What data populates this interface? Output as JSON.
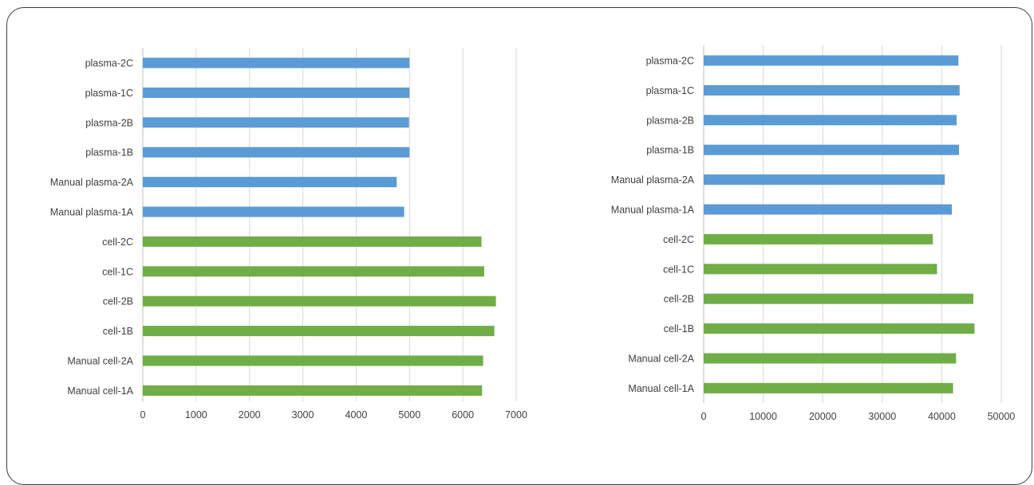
{
  "chart_data": [
    {
      "type": "bar",
      "orientation": "horizontal",
      "title": "",
      "xlabel": "",
      "ylabel": "",
      "xlim": [
        0,
        7000
      ],
      "xticks": [
        0,
        1000,
        2000,
        3000,
        4000,
        5000,
        6000,
        7000
      ],
      "grid": "vertical",
      "categories": [
        "plasma-2C",
        "plasma-1C",
        "plasma-2B",
        "plasma-1B",
        "Manual plasma-2A",
        "Manual plasma-1A",
        "cell-2C",
        "cell-1C",
        "cell-2B",
        "cell-1B",
        "Manual cell-2A",
        "Manual cell-1A"
      ],
      "values": [
        5000,
        5000,
        4990,
        5000,
        4760,
        4900,
        6350,
        6400,
        6620,
        6590,
        6380,
        6360
      ],
      "colors": [
        "#5b9bd5",
        "#5b9bd5",
        "#5b9bd5",
        "#5b9bd5",
        "#5b9bd5",
        "#5b9bd5",
        "#70ad47",
        "#70ad47",
        "#70ad47",
        "#70ad47",
        "#70ad47",
        "#70ad47"
      ]
    },
    {
      "type": "bar",
      "orientation": "horizontal",
      "title": "",
      "xlabel": "",
      "ylabel": "",
      "xlim": [
        0,
        50000
      ],
      "xticks": [
        0,
        10000,
        20000,
        30000,
        40000,
        50000
      ],
      "grid": "vertical",
      "categories": [
        "plasma-2C",
        "plasma-1C",
        "plasma-2B",
        "plasma-1B",
        "Manual plasma-2A",
        "Manual plasma-1A",
        "cell-2C",
        "cell-1C",
        "cell-2B",
        "cell-1B",
        "Manual cell-2A",
        "Manual cell-1A"
      ],
      "values": [
        42800,
        43000,
        42500,
        42900,
        40500,
        41700,
        38500,
        39200,
        45300,
        45500,
        42400,
        41900
      ],
      "colors": [
        "#5b9bd5",
        "#5b9bd5",
        "#5b9bd5",
        "#5b9bd5",
        "#5b9bd5",
        "#5b9bd5",
        "#70ad47",
        "#70ad47",
        "#70ad47",
        "#70ad47",
        "#70ad47",
        "#70ad47"
      ]
    }
  ]
}
